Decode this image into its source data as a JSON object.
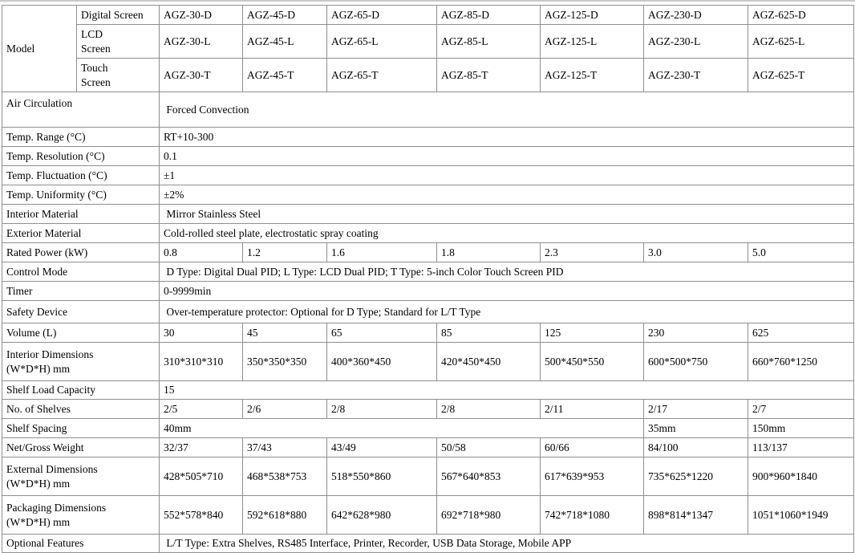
{
  "colors": {
    "border": "#8f8f8f",
    "top_rule": "#c9c9c9",
    "text": "#000000",
    "background": "#ffffff"
  },
  "table": {
    "model": {
      "label": "Model",
      "series": [
        {
          "screen": "Digital Screen",
          "models": [
            "AGZ-30-D",
            "AGZ-45-D",
            "AGZ-65-D",
            "AGZ-85-D",
            "AGZ-125-D",
            "AGZ-230-D",
            "AGZ-625-D"
          ]
        },
        {
          "screen": "LCD\nScreen",
          "models": [
            "AGZ-30-L",
            "AGZ-45-L",
            "AGZ-65-L",
            "AGZ-85-L",
            "AGZ-125-L",
            "AGZ-230-L",
            "AGZ-625-L"
          ]
        },
        {
          "screen": "Touch\nScreen",
          "models": [
            "AGZ-30-T",
            "AGZ-45-T",
            "AGZ-65-T",
            "AGZ-85-T",
            "AGZ-125-T",
            "AGZ-230-T",
            "AGZ-625-T"
          ]
        }
      ]
    },
    "rows": [
      {
        "id": "air-circulation",
        "label": "Air Circulation",
        "cells": [
          {
            "text": " Forced Convection",
            "span": 7
          }
        ]
      },
      {
        "id": "temp-range",
        "label": "Temp. Range (°C)",
        "cells": [
          {
            "text": "RT+10-300",
            "span": 7
          }
        ]
      },
      {
        "id": "temp-resolution",
        "label": "Temp. Resolution (°C)",
        "cells": [
          {
            "text": "0.1",
            "span": 7
          }
        ]
      },
      {
        "id": "temp-fluctuation",
        "label": "Temp. Fluctuation (°C)",
        "cells": [
          {
            "text": "±1",
            "span": 7
          }
        ]
      },
      {
        "id": "temp-uniformity",
        "label": "Temp. Uniformity (°C)",
        "cells": [
          {
            "text": "±2%",
            "span": 7
          }
        ]
      },
      {
        "id": "interior-material",
        "label": "Interior Material",
        "cells": [
          {
            "text": " Mirror Stainless Steel",
            "span": 7
          }
        ]
      },
      {
        "id": "exterior-material",
        "label": "Exterior Material",
        "cells": [
          {
            "text": "Cold-rolled steel plate, electrostatic spray coating",
            "span": 7
          }
        ]
      },
      {
        "id": "rated-power",
        "label": "Rated Power (kW)",
        "cells": [
          {
            "text": "0.8"
          },
          {
            "text": "1.2"
          },
          {
            "text": "1.6"
          },
          {
            "text": "1.8"
          },
          {
            "text": "2.3"
          },
          {
            "text": "3.0"
          },
          {
            "text": "5.0"
          }
        ]
      },
      {
        "id": "control-mode",
        "label": "Control Mode",
        "cells": [
          {
            "text": " D Type: Digital Dual PID; L Type: LCD Dual PID; T Type: 5-inch Color Touch Screen PID",
            "span": 7
          }
        ]
      },
      {
        "id": "timer",
        "label": "Timer",
        "cells": [
          {
            "text": "0-9999min",
            "span": 7
          }
        ]
      },
      {
        "id": "safety-device",
        "label": "Safety Device",
        "cells": [
          {
            "text": " Over-temperature protector: Optional for D Type; Standard for L/T Type",
            "span": 7
          }
        ]
      },
      {
        "id": "volume",
        "label": "Volume (L)",
        "cells": [
          {
            "text": "30"
          },
          {
            "text": "45"
          },
          {
            "text": "65"
          },
          {
            "text": "85"
          },
          {
            "text": "125"
          },
          {
            "text": "230"
          },
          {
            "text": "625"
          }
        ]
      },
      {
        "id": "interior-dimensions",
        "label": "Interior Dimensions\n(W*D*H) mm",
        "cells": [
          {
            "text": "310*310*310"
          },
          {
            "text": "350*350*350"
          },
          {
            "text": "400*360*450"
          },
          {
            "text": "420*450*450"
          },
          {
            "text": "500*450*550"
          },
          {
            "text": "600*500*750"
          },
          {
            "text": "660*760*1250"
          }
        ]
      },
      {
        "id": "shelf-load-capacity",
        "label": "Shelf Load Capacity",
        "cells": [
          {
            "text": "15",
            "span": 7
          }
        ]
      },
      {
        "id": "no-of-shelves",
        "label": "No. of Shelves",
        "cells": [
          {
            "text": "2/5"
          },
          {
            "text": "2/6"
          },
          {
            "text": "2/8"
          },
          {
            "text": "2/8"
          },
          {
            "text": "2/11"
          },
          {
            "text": "2/17"
          },
          {
            "text": "2/7"
          }
        ]
      },
      {
        "id": "shelf-spacing",
        "label": "Shelf Spacing",
        "cells": [
          {
            "text": "40mm",
            "span": 5
          },
          {
            "text": "35mm"
          },
          {
            "text": "150mm"
          }
        ]
      },
      {
        "id": "net-gross-weight",
        "label": "Net/Gross Weight",
        "cells": [
          {
            "text": "32/37"
          },
          {
            "text": "37/43"
          },
          {
            "text": "43/49"
          },
          {
            "text": "50/58"
          },
          {
            "text": "60/66"
          },
          {
            "text": "84/100"
          },
          {
            "text": "113/137"
          }
        ]
      },
      {
        "id": "external-dimensions",
        "label": "External Dimensions\n(W*D*H) mm",
        "cells": [
          {
            "text": "428*505*710"
          },
          {
            "text": "468*538*753"
          },
          {
            "text": "518*550*860"
          },
          {
            "text": "567*640*853"
          },
          {
            "text": "617*639*953"
          },
          {
            "text": "735*625*1220"
          },
          {
            "text": "900*960*1840"
          }
        ]
      },
      {
        "id": "packaging-dimensions",
        "label": "Packaging Dimensions\n(W*D*H) mm",
        "cells": [
          {
            "text": "552*578*840"
          },
          {
            "text": "592*618*880"
          },
          {
            "text": "642*628*980"
          },
          {
            "text": "692*718*980"
          },
          {
            "text": "742*718*1080"
          },
          {
            "text": "898*814*1347"
          },
          {
            "text": "1051*1060*1949"
          }
        ]
      },
      {
        "id": "optional-features",
        "label": "Optional Features",
        "cells": [
          {
            "text": " L/T Type: Extra Shelves, RS485 Interface, Printer, Recorder, USB Data Storage, Mobile APP",
            "span": 7
          }
        ]
      }
    ]
  }
}
